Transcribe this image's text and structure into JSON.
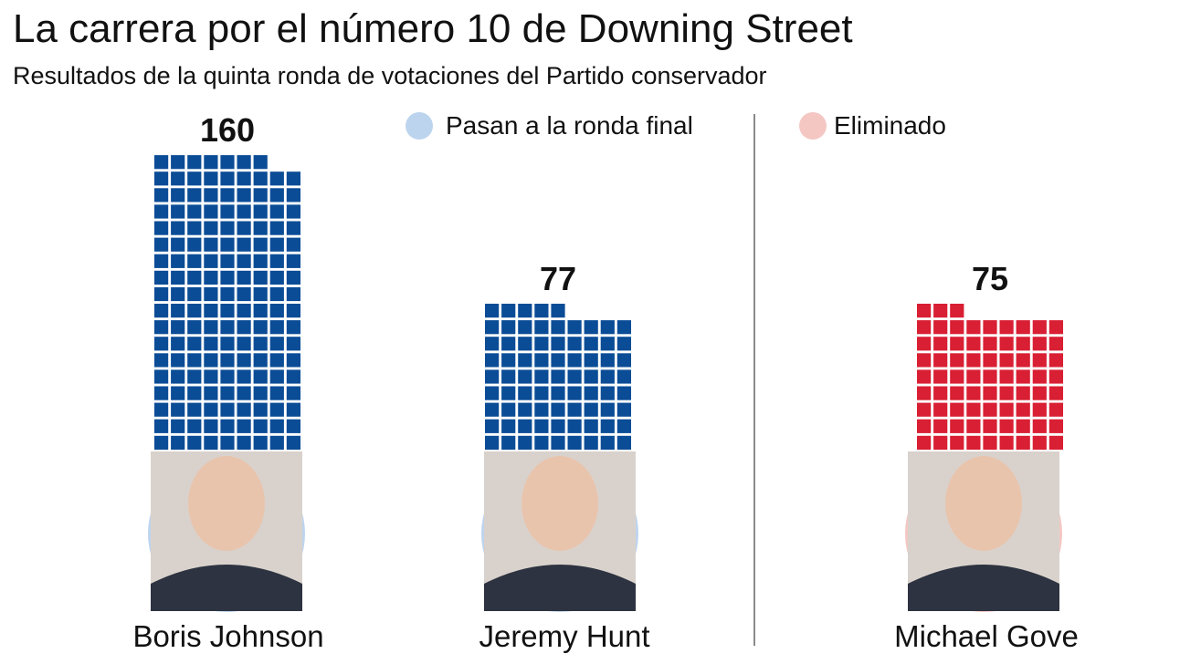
{
  "title": "La carrera por el número 10 de Downing Street",
  "subtitle": "Resultados de la quinta ronda de votaciones del Partido conservador",
  "legend": {
    "final": {
      "label": "Pasan a la ronda final",
      "color": "#bdd4ee"
    },
    "eliminated": {
      "label": "Eliminado",
      "color": "#f4c7c3"
    }
  },
  "colors": {
    "advance_squares": "#0b4c96",
    "eliminated_squares": "#d91f33",
    "advance_circle": "#bdd4ee",
    "eliminated_circle": "#f4c7c3"
  },
  "chart_data": {
    "type": "bar",
    "style": "waffle",
    "title": "La carrera por el número 10 de Downing Street",
    "subtitle": "Resultados de la quinta ronda de votaciones del Partido conservador",
    "categories": [
      "Boris Johnson",
      "Jeremy Hunt",
      "Michael Gove"
    ],
    "values": [
      160,
      77,
      75
    ],
    "status": [
      "Pasan a la ronda final",
      "Pasan a la ronda final",
      "Eliminado"
    ],
    "series": [
      {
        "values": [
          160,
          77,
          75
        ]
      }
    ],
    "units_per_square": 1,
    "squares_per_row": 9
  }
}
